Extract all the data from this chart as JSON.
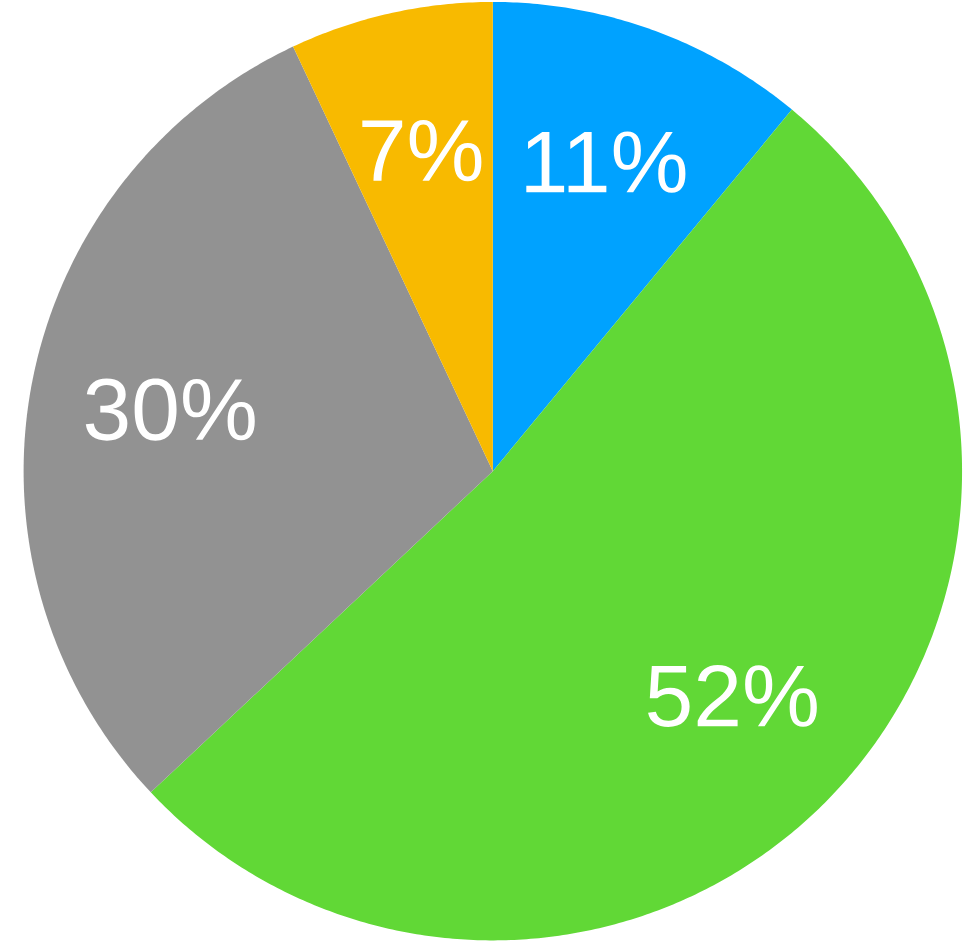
{
  "chart_data": {
    "type": "pie",
    "categories": [
      null,
      null,
      null,
      null
    ],
    "values": [
      11,
      52,
      30,
      7
    ],
    "colors": [
      "#00a2ff",
      "#61d836",
      "#929292",
      "#f8ba00"
    ],
    "value_labels": [
      "11%",
      "52%",
      "30%",
      "7%"
    ]
  }
}
